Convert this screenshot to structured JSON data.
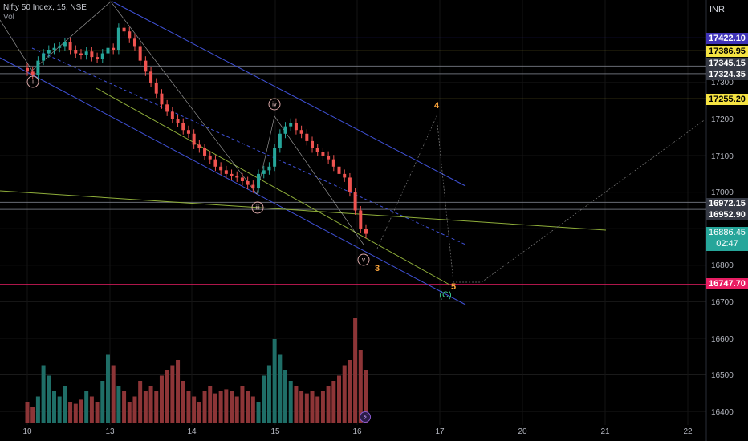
{
  "header": {
    "title": "Nifty 50 Index, 15, NSE",
    "volume_label": "Vol"
  },
  "currency": "INR",
  "colors": {
    "up": "#26a69a",
    "down": "#ef5350",
    "channel": "#3f51d6",
    "wave": "#f7a23b",
    "target_line": "#e91e63"
  },
  "price_labels": [
    {
      "value": "17422.10",
      "bg": "#3f33b8",
      "fg": "#ffffff"
    },
    {
      "value": "17386.95",
      "bg": "#f5e342",
      "fg": "#000000"
    },
    {
      "value": "17345.15",
      "bg": "#363a45",
      "fg": "#ffffff"
    },
    {
      "value": "17324.35",
      "bg": "#363a45",
      "fg": "#ffffff"
    },
    {
      "value": "17255.20",
      "bg": "#f5e342",
      "fg": "#000000"
    },
    {
      "value": "16972.15",
      "bg": "#363a45",
      "fg": "#ffffff"
    },
    {
      "value": "16952.90",
      "bg": "#363a45",
      "fg": "#ffffff"
    },
    {
      "value": "16747.70",
      "bg": "#e91e63",
      "fg": "#ffffff"
    }
  ],
  "last_price": {
    "value": "16886.45",
    "countdown": "02:47"
  },
  "wave_labels": [
    {
      "text": "i",
      "style": "circle"
    },
    {
      "text": "iii",
      "style": "circle"
    },
    {
      "text": "iv",
      "style": "circle"
    },
    {
      "text": "v",
      "style": "circle"
    },
    {
      "text": "3",
      "style": "orange"
    },
    {
      "text": "4",
      "style": "orange"
    },
    {
      "text": "5",
      "style": "orange"
    },
    {
      "text": "(C)",
      "style": "green"
    }
  ],
  "event_icon": "lightning-icon",
  "chart_data": {
    "type": "candlestick",
    "title": "Nifty 50 Index, 15, NSE",
    "y_axis": {
      "ticks": [
        17300,
        17200,
        17100,
        17000,
        16900,
        16800,
        16700,
        16600,
        16500,
        16400
      ],
      "ylim": [
        16390,
        17490
      ],
      "unit": "INR"
    },
    "x_axis": {
      "ticks": [
        "10",
        "13",
        "14",
        "15",
        "16",
        "17",
        "20",
        "21",
        "22"
      ]
    },
    "close_series": [
      17330,
      17320,
      17360,
      17380,
      17390,
      17395,
      17400,
      17410,
      17390,
      17380,
      17375,
      17385,
      17370,
      17365,
      17380,
      17395,
      17390,
      17450,
      17440,
      17420,
      17400,
      17360,
      17330,
      17300,
      17270,
      17240,
      17220,
      17200,
      17190,
      17170,
      17160,
      17130,
      17120,
      17100,
      17090,
      17070,
      17060,
      17050,
      17045,
      17040,
      17030,
      17020,
      17010,
      17050,
      17060,
      17070,
      17120,
      17160,
      17180,
      17190,
      17170,
      17160,
      17140,
      17120,
      17110,
      17100,
      17090,
      17070,
      17050,
      17040,
      17000,
      16950,
      16900,
      16886
    ],
    "volume_scale": "relative",
    "volume_series": [
      0.2,
      0.15,
      0.25,
      0.55,
      0.45,
      0.3,
      0.25,
      0.35,
      0.2,
      0.18,
      0.22,
      0.3,
      0.25,
      0.2,
      0.4,
      0.65,
      0.55,
      0.35,
      0.3,
      0.2,
      0.25,
      0.4,
      0.3,
      0.35,
      0.3,
      0.45,
      0.5,
      0.55,
      0.6,
      0.4,
      0.3,
      0.25,
      0.2,
      0.3,
      0.35,
      0.28,
      0.3,
      0.32,
      0.3,
      0.25,
      0.35,
      0.3,
      0.25,
      0.2,
      0.45,
      0.55,
      0.8,
      0.65,
      0.5,
      0.4,
      0.35,
      0.3,
      0.28,
      0.3,
      0.25,
      0.3,
      0.35,
      0.4,
      0.45,
      0.55,
      0.6,
      1.0,
      0.7,
      0.5
    ],
    "horizontal_levels": [
      17422.1,
      17386.95,
      17345.15,
      17324.35,
      17255.2,
      16972.15,
      16952.9,
      16747.7
    ]
  }
}
